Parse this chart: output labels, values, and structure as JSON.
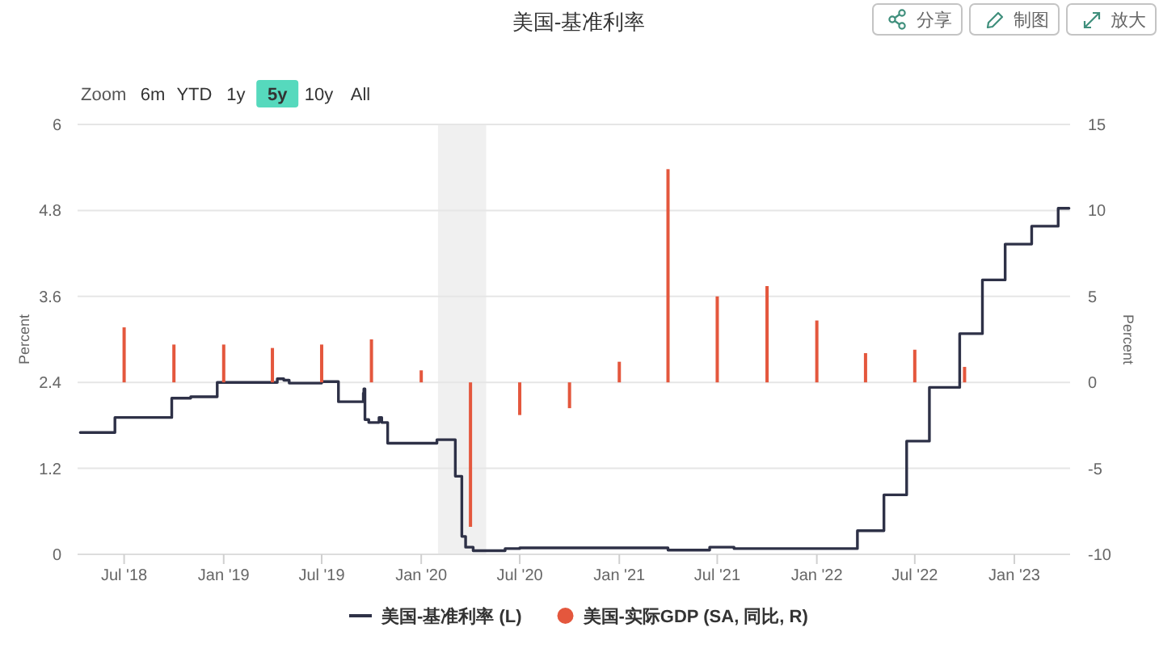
{
  "chart_data": {
    "type": "step",
    "title": "美国-基准利率",
    "ylabel": "Percent",
    "y2label": "Percent",
    "annotations": [
      "分享",
      "制图",
      "放大",
      "Zoom",
      "6m",
      "YTD",
      "1y",
      "5y",
      "10y",
      "All"
    ],
    "xlim": [
      "2018-04-06",
      "2023-04-14"
    ],
    "xticks": [
      {
        "value": "2018-07-01",
        "label": "Jul '18"
      },
      {
        "value": "2019-01-01",
        "label": "Jan '19"
      },
      {
        "value": "2019-07-01",
        "label": "Jul '19"
      },
      {
        "value": "2020-01-01",
        "label": "Jan '20"
      },
      {
        "value": "2020-07-01",
        "label": "Jul '20"
      },
      {
        "value": "2021-01-01",
        "label": "Jan '21"
      },
      {
        "value": "2021-07-01",
        "label": "Jul '21"
      },
      {
        "value": "2022-01-01",
        "label": "Jan '22"
      },
      {
        "value": "2022-07-01",
        "label": "Jul '22"
      },
      {
        "value": "2023-01-01",
        "label": "Jan '23"
      }
    ],
    "ylim": [
      0,
      6
    ],
    "yticks": [
      0,
      1.2,
      2.4,
      3.6,
      4.8,
      6
    ],
    "y2lim": [
      -10,
      15
    ],
    "y2ticks": [
      -10,
      -5,
      0,
      5,
      10,
      15
    ],
    "grid": "y",
    "legend": "bottom",
    "bands": [
      {
        "axis": "x",
        "from": "2020-02-01",
        "to": "2020-04-30",
        "color": "#f0f0f0"
      }
    ],
    "series": [
      {
        "name": "美国-基准利率 (L)",
        "color": "#2e3147",
        "x": [
          "2018-04-11",
          "2018-06-14",
          "2018-09-27",
          "2018-11-01",
          "2018-12-20",
          "2019-04-10",
          "2019-04-22",
          "2019-05-02",
          "2019-07-01",
          "2019-08-01",
          "2019-09-16",
          "2019-09-17",
          "2019-09-19",
          "2019-09-26",
          "2019-10-15",
          "2019-10-20",
          "2019-10-31",
          "2020-01-30",
          "2020-03-04",
          "2020-03-16",
          "2020-03-23",
          "2020-04-06",
          "2020-06-04",
          "2020-07-01",
          "2021-04-01",
          "2021-06-17",
          "2021-08-01",
          "2022-03-17",
          "2022-05-05",
          "2022-06-16",
          "2022-07-28",
          "2022-09-22",
          "2022-11-03",
          "2022-12-15",
          "2023-02-02",
          "2023-03-23",
          "2023-04-12"
        ],
        "values": [
          1.7,
          1.91,
          2.18,
          2.2,
          2.4,
          2.45,
          2.43,
          2.39,
          2.41,
          2.13,
          2.25,
          2.31,
          1.88,
          1.84,
          1.91,
          1.84,
          1.55,
          1.6,
          1.09,
          0.25,
          0.1,
          0.05,
          0.08,
          0.09,
          0.06,
          0.1,
          0.08,
          0.33,
          0.83,
          1.58,
          2.33,
          3.08,
          3.83,
          4.33,
          4.58,
          4.83,
          4.83
        ]
      },
      {
        "name": "美国-实际GDP (SA, 同比, R)",
        "type": "bar",
        "axis": "y2",
        "color": "#e4573d",
        "x": [
          "2018-07-01",
          "2018-10-01",
          "2019-01-01",
          "2019-04-01",
          "2019-07-01",
          "2019-10-01",
          "2020-01-01",
          "2020-04-01",
          "2020-07-01",
          "2020-10-01",
          "2021-01-01",
          "2021-04-01",
          "2021-07-01",
          "2021-10-01",
          "2022-01-01",
          "2022-04-01",
          "2022-07-01",
          "2022-10-01"
        ],
        "values": [
          3.2,
          2.2,
          2.2,
          2.0,
          2.2,
          2.5,
          0.7,
          -8.4,
          -1.9,
          -1.5,
          1.2,
          12.4,
          5.0,
          5.6,
          3.6,
          1.7,
          1.9,
          0.9
        ]
      }
    ]
  }
}
